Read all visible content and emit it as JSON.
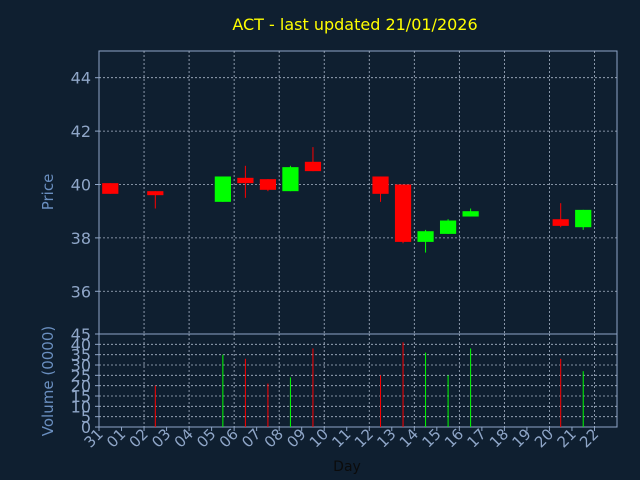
{
  "chart_data": [
    {
      "type": "candlestick",
      "title": "ACT - last updated 21/01/2026",
      "ylabel": "Price",
      "ylim": [
        34.4,
        45
      ],
      "yticks": [
        36,
        38,
        40,
        42,
        44
      ],
      "grid": true,
      "colors": {
        "up": "#00ff00",
        "down": "#ff0000",
        "title": "#ffff00",
        "axis_label": "#6a8fc0",
        "tick_label": "#8fa6c8",
        "grid": "#aab6c8",
        "frame": "#8fa6c8",
        "background": "#0f1f30"
      },
      "candles": [
        {
          "day": "31",
          "open": 40.05,
          "high": 40.05,
          "low": 39.65,
          "close": 39.65
        },
        {
          "day": "02",
          "open": 39.75,
          "high": 39.75,
          "low": 39.1,
          "close": 39.6
        },
        {
          "day": "05",
          "open": 39.35,
          "high": 40.3,
          "low": 39.35,
          "close": 40.3
        },
        {
          "day": "06",
          "open": 40.25,
          "high": 40.7,
          "low": 39.5,
          "close": 40.05
        },
        {
          "day": "07",
          "open": 40.2,
          "high": 40.2,
          "low": 39.75,
          "close": 39.8
        },
        {
          "day": "08",
          "open": 39.75,
          "high": 40.7,
          "low": 39.75,
          "close": 40.65
        },
        {
          "day": "09",
          "open": 40.85,
          "high": 41.4,
          "low": 40.5,
          "close": 40.5
        },
        {
          "day": "12",
          "open": 40.3,
          "high": 40.3,
          "low": 39.35,
          "close": 39.65
        },
        {
          "day": "13",
          "open": 40.0,
          "high": 40.0,
          "low": 37.8,
          "close": 37.85
        },
        {
          "day": "14",
          "open": 37.85,
          "high": 38.3,
          "low": 37.45,
          "close": 38.25
        },
        {
          "day": "15",
          "open": 38.15,
          "high": 38.7,
          "low": 38.15,
          "close": 38.65
        },
        {
          "day": "16",
          "open": 38.8,
          "high": 39.1,
          "low": 38.8,
          "close": 39.0
        },
        {
          "day": "20",
          "open": 38.7,
          "high": 39.3,
          "low": 38.4,
          "close": 38.45
        },
        {
          "day": "21",
          "open": 38.4,
          "high": 39.05,
          "low": 38.3,
          "close": 39.05
        }
      ]
    },
    {
      "type": "bar",
      "xlabel": "Day",
      "ylabel": "Volume (0000)",
      "ylim": [
        0,
        45
      ],
      "yticks": [
        0,
        5,
        10,
        15,
        20,
        25,
        30,
        35,
        40,
        45
      ],
      "grid": true,
      "categories": [
        "31",
        "01",
        "02",
        "03",
        "04",
        "05",
        "06",
        "07",
        "08",
        "09",
        "10",
        "11",
        "12",
        "13",
        "14",
        "15",
        "16",
        "17",
        "18",
        "19",
        "20",
        "21",
        "22"
      ],
      "volumes": [
        {
          "day": "02",
          "value": 20,
          "direction": "down"
        },
        {
          "day": "05",
          "value": 35,
          "direction": "up"
        },
        {
          "day": "06",
          "value": 33,
          "direction": "down"
        },
        {
          "day": "07",
          "value": 21,
          "direction": "down"
        },
        {
          "day": "08",
          "value": 24,
          "direction": "up"
        },
        {
          "day": "09",
          "value": 38,
          "direction": "down"
        },
        {
          "day": "12",
          "value": 25,
          "direction": "down"
        },
        {
          "day": "13",
          "value": 41,
          "direction": "down"
        },
        {
          "day": "14",
          "value": 36,
          "direction": "up"
        },
        {
          "day": "15",
          "value": 25,
          "direction": "up"
        },
        {
          "day": "16",
          "value": 38,
          "direction": "up"
        },
        {
          "day": "20",
          "value": 33,
          "direction": "down"
        },
        {
          "day": "21",
          "value": 27,
          "direction": "up"
        }
      ]
    }
  ]
}
